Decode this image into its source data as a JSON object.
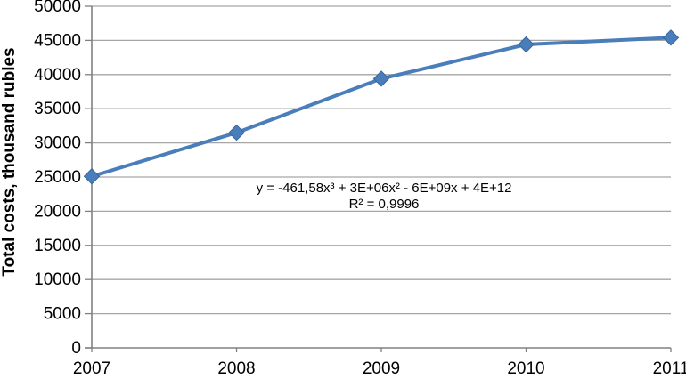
{
  "chart_data": {
    "type": "line",
    "title": "",
    "categories": [
      "2007",
      "2008",
      "2009",
      "2010",
      "2011"
    ],
    "series": [
      {
        "name": "Total costs",
        "values": [
          25100,
          31500,
          39400,
          44400,
          45400
        ],
        "color": "#4a7ebb",
        "marker": "diamond",
        "marker_fill": "#4a7ebb",
        "marker_edge": "#3a669c"
      }
    ],
    "trendline": {
      "type": "polynomial order 3",
      "color": "#000000",
      "equation": "y = -461,58x³ + 3E+06x² - 6E+09x + 4E+12",
      "r2": "R² = 0,9996"
    },
    "xlabel": "",
    "ylabel": "Total costs, thousand rubles",
    "ylim": [
      0,
      50000
    ],
    "ytick_step": 5000,
    "grid": "horizontal",
    "legend": "none",
    "colors": {
      "axis": "#808080",
      "gridline": "#a6a6a6",
      "tick_text": "#000000"
    }
  }
}
